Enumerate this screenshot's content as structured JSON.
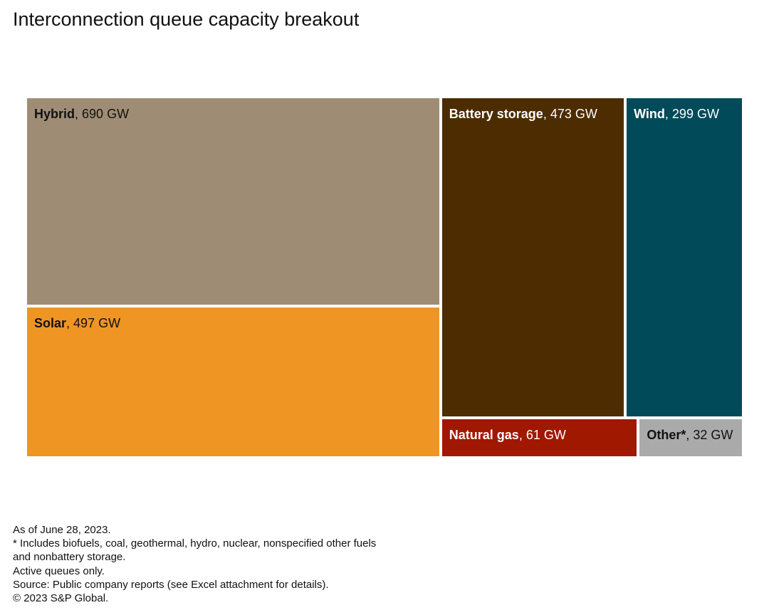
{
  "title": "Interconnection queue capacity breakout",
  "chart_data": {
    "type": "treemap",
    "title": "Interconnection queue capacity breakout",
    "unit": "GW",
    "items": [
      {
        "name": "Hybrid",
        "value": 690,
        "label": "690 GW",
        "color": "#9e8d74",
        "text_color": "#111111"
      },
      {
        "name": "Solar",
        "value": 497,
        "label": "497 GW",
        "color": "#ef9524",
        "text_color": "#111111"
      },
      {
        "name": "Battery storage",
        "value": 473,
        "label": "473 GW",
        "color": "#4c2c00",
        "text_color": "#ffffff"
      },
      {
        "name": "Wind",
        "value": 299,
        "label": "299 GW",
        "color": "#004a5a",
        "text_color": "#ffffff"
      },
      {
        "name": "Natural gas",
        "value": 61,
        "label": "61 GW",
        "color": "#a01800",
        "text_color": "#ffffff"
      },
      {
        "name": "Other*",
        "value": 32,
        "label": "32 GW",
        "color": "#aaaaaa",
        "text_color": "#111111"
      }
    ]
  },
  "footnotes": {
    "as_of": "As of June 28, 2023.",
    "other_note_line1": "* Includes biofuels, coal, geothermal, hydro, nuclear, nonspecified other fuels",
    "other_note_line2": "and nonbattery storage.",
    "active": "Active queues only.",
    "source": "Source: Public company reports (see Excel attachment for details).",
    "copyright": "© 2023 S&P Global."
  }
}
